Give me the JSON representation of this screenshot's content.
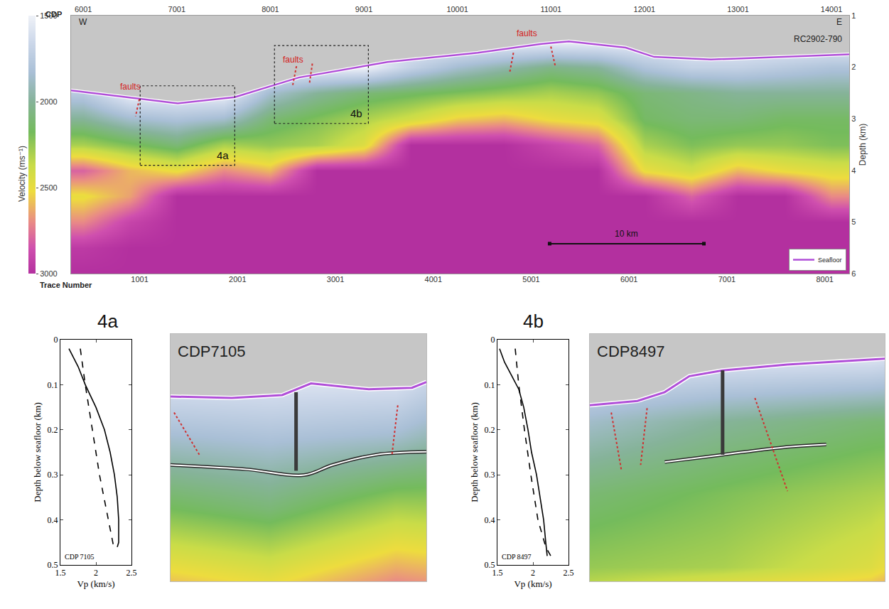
{
  "chart_data": [
    {
      "type": "heatmap",
      "x_label": "CDP",
      "x2_label": "Trace Number",
      "y_label": "Depth (km)",
      "xlim": [
        5870,
        14190
      ],
      "xticks": [
        6001,
        7001,
        8001,
        9001,
        10001,
        11001,
        12001,
        13001,
        14001
      ],
      "x2lim": [
        300,
        8250
      ],
      "x2ticks": [
        1001,
        2001,
        3001,
        4001,
        5001,
        6001,
        7001,
        8001
      ],
      "ylim": [
        6,
        1
      ],
      "yticks": [
        1,
        2,
        3,
        4,
        5,
        6
      ],
      "x": [
        6000,
        6500,
        7000,
        7500,
        8000,
        8500,
        9000,
        9500,
        10000,
        10500,
        11000,
        11500,
        12000,
        12500,
        13000,
        13500,
        14000
      ],
      "y": [
        1,
        1.5,
        2,
        2.5,
        3,
        3.5,
        4,
        4.5,
        5,
        5.5,
        6
      ],
      "z": [
        [
          1500,
          1500,
          1500,
          1500,
          1500,
          1500,
          1500,
          1500,
          1500,
          1500,
          1500,
          1500,
          1500,
          1500,
          1500,
          1500,
          1500
        ],
        [
          1500,
          1500,
          1500,
          1500,
          1500,
          1500,
          1500,
          1500,
          1500,
          1500,
          1500,
          1500,
          1500,
          1500,
          1500,
          1500,
          1500
        ],
        [
          1500,
          1500,
          1500,
          1500,
          1500,
          1500,
          1500,
          1700,
          1850,
          1950,
          2050,
          2000,
          1800,
          1700,
          1700,
          1750,
          1800
        ],
        [
          1750,
          1500,
          1500,
          1500,
          1850,
          2000,
          2100,
          2150,
          2200,
          2250,
          2300,
          2250,
          2100,
          2050,
          2000,
          2000,
          2000
        ],
        [
          2000,
          1850,
          1800,
          1850,
          2100,
          2200,
          2300,
          2400,
          2550,
          2600,
          2500,
          2450,
          2150,
          2100,
          2100,
          2150,
          2150
        ],
        [
          2300,
          2200,
          2100,
          2300,
          2250,
          2300,
          2450,
          3000,
          3000,
          3000,
          2900,
          2800,
          2300,
          2200,
          2250,
          2250,
          2200
        ],
        [
          2800,
          2600,
          2500,
          2700,
          2600,
          3000,
          3000,
          3000,
          3000,
          3000,
          3000,
          3000,
          2500,
          2400,
          2600,
          2500,
          2450
        ],
        [
          2500,
          2650,
          3000,
          3000,
          3000,
          3000,
          3000,
          3000,
          3000,
          3000,
          3000,
          3000,
          3000,
          2800,
          3000,
          3000,
          2700
        ],
        [
          2700,
          2900,
          3000,
          3000,
          3000,
          3000,
          3000,
          3000,
          3000,
          3000,
          3000,
          3000,
          3000,
          3000,
          3000,
          3000,
          3000
        ],
        [
          2950,
          3000,
          3000,
          3000,
          3000,
          3000,
          3000,
          3000,
          3000,
          3000,
          3000,
          3000,
          3000,
          3000,
          3000,
          3000,
          3000
        ],
        [
          3000,
          3000,
          3000,
          3000,
          3000,
          3000,
          3000,
          3000,
          3000,
          3000,
          3000,
          3000,
          3000,
          3000,
          3000,
          3000,
          3000
        ]
      ],
      "colorbar": {
        "title": "Velocity (ms⁻¹)",
        "clim": [
          1500,
          3000
        ],
        "ticks": [
          1500,
          2000,
          2500,
          3000
        ]
      },
      "series": [
        {
          "name": "Seafloor",
          "color": "#b04fd8",
          "x": [
            5870,
            6500,
            7012,
            7620,
            8304,
            9254,
            10219,
            10888,
            11192,
            11800,
            12104,
            12712,
            13472,
            14190
          ],
          "values": [
            2.45,
            2.59,
            2.7,
            2.58,
            2.2,
            1.9,
            1.72,
            1.55,
            1.5,
            1.62,
            1.8,
            1.85,
            1.8,
            1.75
          ]
        }
      ],
      "legend": "bottom right",
      "annotations": [
        {
          "text": "W",
          "x": 6000,
          "y": 1.12
        },
        {
          "text": "E",
          "x": 14080,
          "y": 1.12
        },
        {
          "text": "RC2902-790",
          "x": 13852,
          "y": 1.45
        },
        {
          "text": "faults",
          "x": 6503,
          "y": 2.38,
          "color": "#d42020"
        },
        {
          "text": "faults",
          "x": 8243,
          "y": 1.85,
          "color": "#d42020"
        },
        {
          "text": "faults",
          "x": 10743,
          "y": 1.35,
          "color": "#d42020"
        }
      ],
      "fault_lines": [
        [
          6600,
          2.62,
          6560,
          2.95
        ],
        [
          8280,
          1.98,
          8240,
          2.35
        ],
        [
          8450,
          1.93,
          8420,
          2.3
        ],
        [
          10600,
          1.72,
          10560,
          2.1
        ],
        [
          11000,
          1.6,
          11050,
          2.0
        ]
      ],
      "boxes": [
        {
          "label": "4a",
          "xlim": [
            6609,
            7620
          ],
          "ylim": [
            3.9,
            2.36
          ]
        },
        {
          "label": "4b",
          "xlim": [
            8045,
            9049
          ],
          "ylim": [
            3.09,
            1.58
          ]
        }
      ],
      "scale_bar": {
        "label": "10 km",
        "x": [
          10987,
          12636
        ],
        "y": 5.42
      }
    },
    {
      "type": "line",
      "title": "4a",
      "label": "CDP 7105",
      "x_label": "Vp (km/s)",
      "y_label": "Depth below seafloor (km)",
      "xlim": [
        1.5,
        2.5
      ],
      "xticks": [
        1.5,
        2,
        2.5
      ],
      "ylim": [
        0.5,
        0
      ],
      "yticks": [
        0,
        0.1,
        0.2,
        0.3,
        0.4,
        0.5
      ],
      "series": [
        {
          "line_style": "solid",
          "color": "#000000",
          "x": [
            1.62,
            1.75,
            1.85,
            2.0,
            2.12,
            2.2,
            2.26,
            2.3,
            2.32,
            2.32,
            2.3
          ],
          "values": [
            0.02,
            0.06,
            0.1,
            0.15,
            0.2,
            0.25,
            0.3,
            0.35,
            0.4,
            0.45,
            0.46
          ]
        },
        {
          "line_style": "dashed",
          "color": "#000000",
          "x": [
            1.78,
            1.85,
            1.95,
            2.05,
            2.15,
            2.25
          ],
          "values": [
            0.02,
            0.1,
            0.2,
            0.3,
            0.38,
            0.46
          ]
        }
      ]
    },
    {
      "type": "heatmap",
      "label": "CDP7105",
      "tick_labels": false,
      "xlim": [
        6609,
        7620
      ],
      "ylim": [
        4.0,
        2.3
      ],
      "seafloor": {
        "color": "#b04fd8",
        "x": [
          6609,
          6851,
          7050,
          7164,
          7392,
          7563,
          7620
        ],
        "values": [
          2.73,
          2.74,
          2.72,
          2.64,
          2.68,
          2.67,
          2.63
        ]
      },
      "reflector": {
        "x": [
          6609,
          6908,
          7136,
          7250,
          7421,
          7620
        ],
        "values": [
          3.2,
          3.23,
          3.27,
          3.2,
          3.13,
          3.11
        ]
      },
      "marker_line": {
        "x": 7105,
        "y": [
          2.7,
          3.24
        ]
      },
      "fault_lines": [
        [
          6623,
          2.84,
          6723,
          3.13
        ],
        [
          7507,
          2.79,
          7484,
          3.13
        ]
      ]
    },
    {
      "type": "line",
      "title": "4b",
      "label": "CDP 8497",
      "x_label": "Vp (km/s)",
      "y_label": "Depth below seafloor (km)",
      "xlim": [
        1.5,
        2.5
      ],
      "xticks": [
        1.5,
        2,
        2.5
      ],
      "ylim": [
        0.5,
        0
      ],
      "yticks": [
        0,
        0.1,
        0.2,
        0.3,
        0.4,
        0.5
      ],
      "series": [
        {
          "line_style": "solid",
          "color": "#000000",
          "x": [
            1.53,
            1.6,
            1.7,
            1.8,
            1.87,
            1.93,
            1.98,
            2.05,
            2.1,
            2.15,
            2.18,
            2.2
          ],
          "values": [
            0.02,
            0.05,
            0.08,
            0.11,
            0.15,
            0.2,
            0.25,
            0.3,
            0.35,
            0.4,
            0.45,
            0.48
          ]
        },
        {
          "line_style": "dashed",
          "color": "#000000",
          "x": [
            1.75,
            1.8,
            1.88,
            1.97,
            2.07,
            2.18,
            2.25
          ],
          "values": [
            0.02,
            0.1,
            0.2,
            0.3,
            0.4,
            0.46,
            0.48
          ]
        }
      ]
    },
    {
      "type": "heatmap",
      "label": "CDP8497",
      "tick_labels": false,
      "xlim": [
        8045,
        9049
      ],
      "ylim": [
        3.6,
        1.9
      ],
      "seafloor": {
        "color": "#b04fd8",
        "x": [
          8045,
          8207,
          8300,
          8384,
          8497,
          8717,
          9049
        ],
        "values": [
          2.39,
          2.36,
          2.3,
          2.19,
          2.15,
          2.11,
          2.07
        ]
      },
      "reflector": {
        "x": [
          8300,
          8497,
          8700,
          8850
        ],
        "values": [
          2.78,
          2.73,
          2.68,
          2.66
        ]
      },
      "marker_line": {
        "x": 8497,
        "y": [
          2.15,
          2.73
        ]
      },
      "fault_lines": [
        [
          8118,
          2.44,
          8152,
          2.83
        ],
        [
          8240,
          2.41,
          8218,
          2.8
        ],
        [
          8607,
          2.34,
          8718,
          2.98
        ]
      ]
    }
  ]
}
